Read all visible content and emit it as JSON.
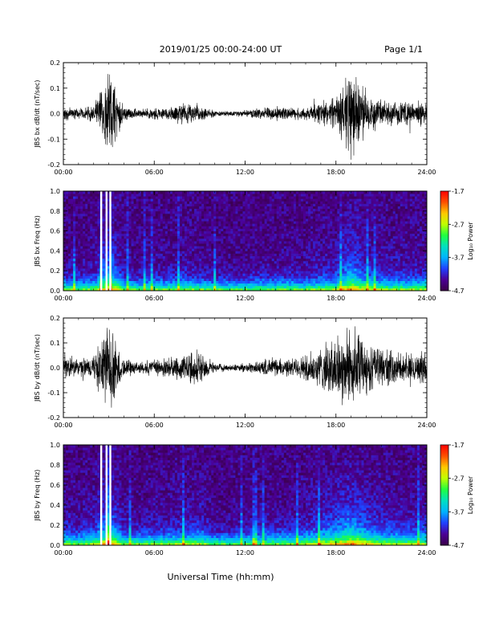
{
  "header": {
    "title": "2019/01/25  00:00-24:00 UT",
    "page": "Page 1/1"
  },
  "xaxis": {
    "ticks": [
      "00:00",
      "06:00",
      "12:00",
      "18:00",
      "24:00"
    ],
    "label": "Universal Time (hh:mm)"
  },
  "colorbar": {
    "label": "Log₁₀ Power",
    "ticks": [
      "-1.7",
      "-2.7",
      "-3.7",
      "-4.7"
    ],
    "colors": [
      "#3a0048",
      "#4b0096",
      "#2040ff",
      "#00b4ff",
      "#00e0c0",
      "#20ff40",
      "#c0ff00",
      "#ffc800",
      "#ff5000",
      "#ff0000"
    ]
  },
  "chart_data": [
    {
      "type": "line",
      "ylabel": "JBS bx dB/dt (nT/sec)",
      "yticks": [
        "0.2",
        "0.1",
        "0.0",
        "-0.1",
        "-0.2"
      ],
      "ylim": [
        -0.2,
        0.2
      ],
      "xlim_hours": [
        0,
        24
      ],
      "envelope": {
        "hours": [
          0,
          1,
          2,
          3,
          4,
          5,
          6,
          7,
          8,
          9,
          10,
          11,
          12,
          13,
          14,
          15,
          16,
          17,
          18,
          19,
          20,
          21,
          22,
          23,
          24
        ],
        "amplitude": [
          0.03,
          0.025,
          0.035,
          0.2,
          0.03,
          0.02,
          0.025,
          0.03,
          0.05,
          0.03,
          0.015,
          0.01,
          0.015,
          0.025,
          0.03,
          0.025,
          0.03,
          0.05,
          0.07,
          0.2,
          0.09,
          0.06,
          0.05,
          0.05,
          0.06
        ]
      }
    },
    {
      "type": "heatmap",
      "ylabel": "JBS bx Freq (Hz)",
      "yticks": [
        "1.0",
        "0.8",
        "0.6",
        "0.4",
        "0.2",
        "0.0"
      ],
      "ylim": [
        0,
        1.0
      ],
      "xlim_hours": [
        0,
        24
      ],
      "zlim": [
        -4.7,
        -1.7
      ],
      "data_gap_hours": [
        2.5,
        2.85,
        3.1
      ]
    },
    {
      "type": "line",
      "ylabel": "JBS by dB/dt (nT/sec)",
      "yticks": [
        "0.2",
        "0.1",
        "0.0",
        "-0.1",
        "-0.2"
      ],
      "ylim": [
        -0.2,
        0.2
      ],
      "xlim_hours": [
        0,
        24
      ],
      "envelope": {
        "hours": [
          0,
          1,
          2,
          3,
          4,
          5,
          6,
          7,
          8,
          9,
          10,
          11,
          12,
          13,
          14,
          15,
          16,
          17,
          18,
          19,
          20,
          21,
          22,
          23,
          24
        ],
        "amplitude": [
          0.05,
          0.04,
          0.06,
          0.2,
          0.04,
          0.03,
          0.04,
          0.05,
          0.06,
          0.08,
          0.02,
          0.015,
          0.02,
          0.03,
          0.04,
          0.04,
          0.06,
          0.1,
          0.14,
          0.2,
          0.12,
          0.09,
          0.07,
          0.06,
          0.08
        ]
      }
    },
    {
      "type": "heatmap",
      "ylabel": "JBS by Freq (Hz)",
      "yticks": [
        "1.0",
        "0.8",
        "0.6",
        "0.4",
        "0.2",
        "0.0"
      ],
      "ylim": [
        0,
        1.0
      ],
      "xlim_hours": [
        0,
        24
      ],
      "zlim": [
        -4.7,
        -1.7
      ],
      "data_gap_hours": [
        2.5,
        2.85,
        3.1
      ]
    }
  ]
}
